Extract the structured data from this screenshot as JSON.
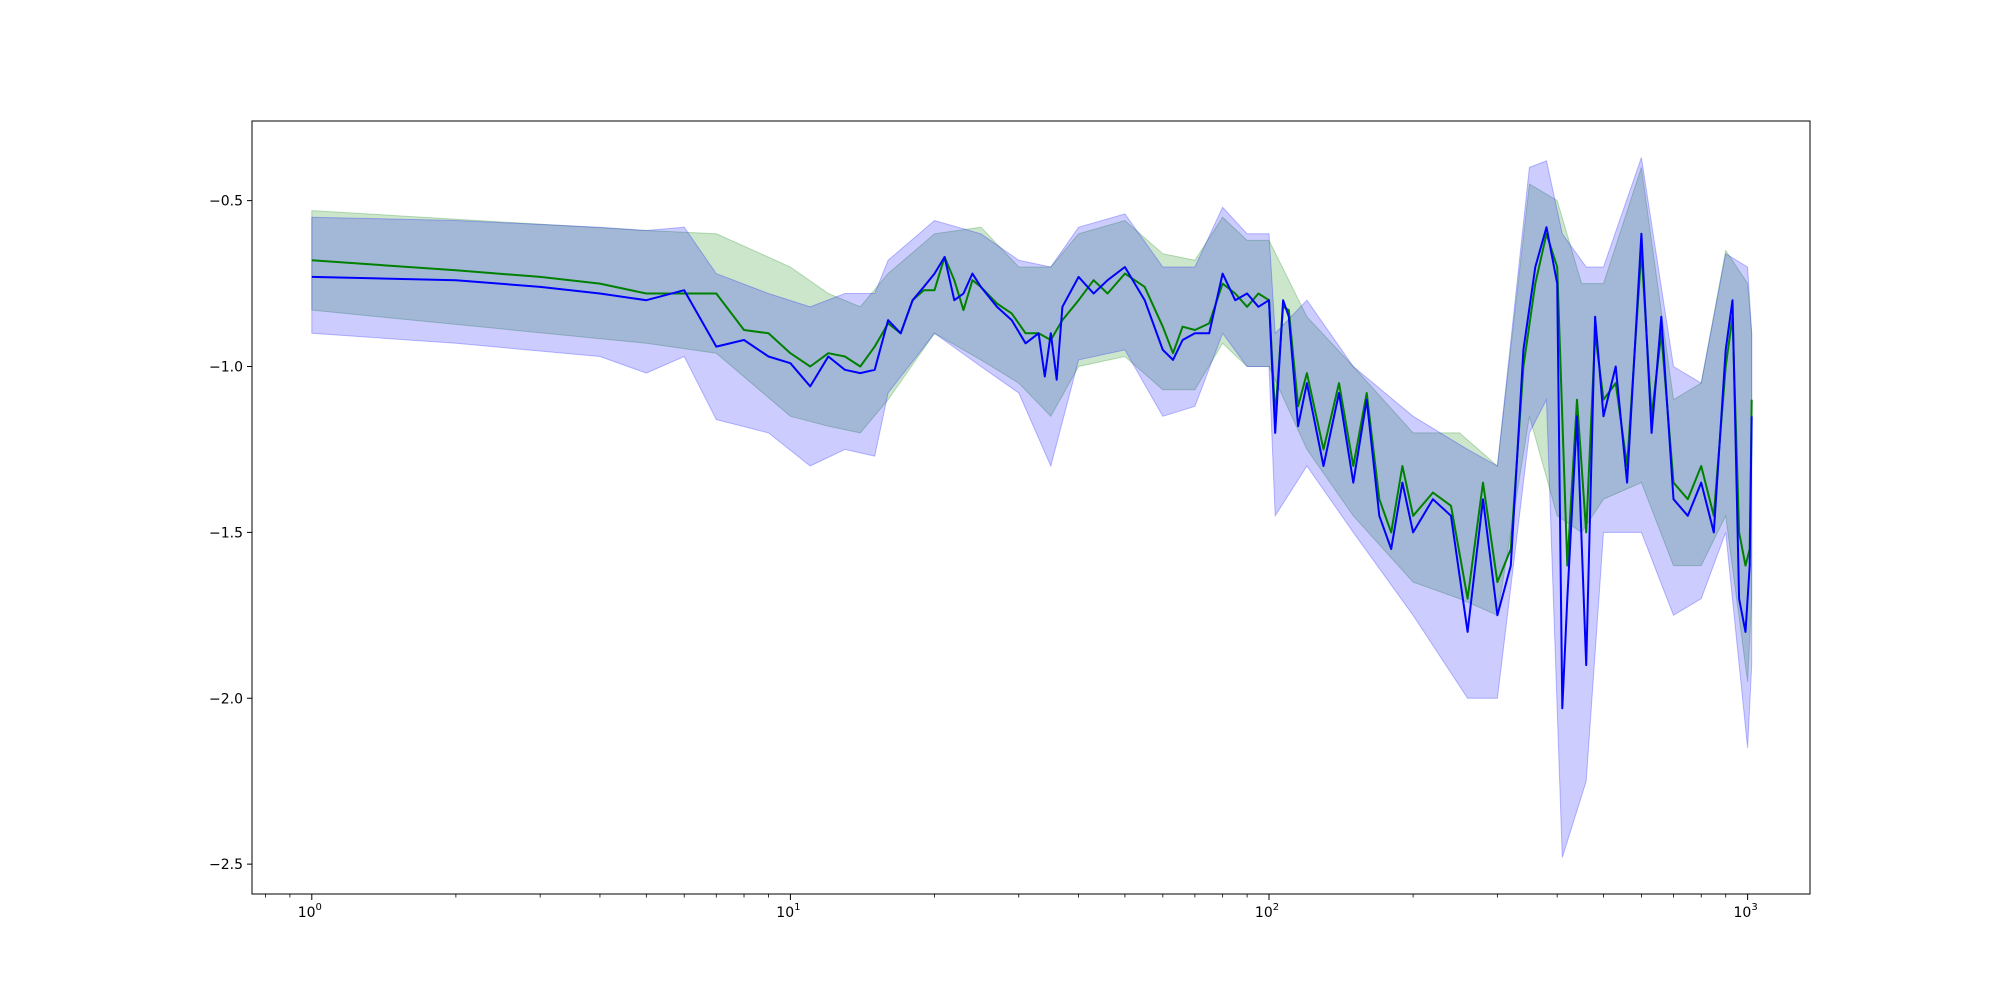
{
  "chart_data": {
    "type": "line",
    "title": "",
    "xlabel": "",
    "ylabel": "",
    "xscale": "log",
    "xlim": [
      0.75,
      1350
    ],
    "ylim": [
      -2.59,
      -0.26
    ],
    "grid": false,
    "legend": "none",
    "x_ticks": [
      {
        "base": "10",
        "exp": "0",
        "value": 1
      },
      {
        "base": "10",
        "exp": "1",
        "value": 10
      },
      {
        "base": "10",
        "exp": "2",
        "value": 100
      },
      {
        "base": "10",
        "exp": "3",
        "value": 1000
      }
    ],
    "y_ticks": [
      {
        "label": "−0.5",
        "value": -0.5
      },
      {
        "label": "−1.0",
        "value": -1.0
      },
      {
        "label": "−1.5",
        "value": -1.5
      },
      {
        "label": "−2.0",
        "value": -2.0
      },
      {
        "label": "−2.5",
        "value": -2.5
      }
    ],
    "series": [
      {
        "color": "#008000",
        "band_color": "#008000",
        "band_opacity": 0.2,
        "points": [
          [
            1,
            -0.68
          ],
          [
            2,
            -0.71
          ],
          [
            3,
            -0.73
          ],
          [
            4,
            -0.75
          ],
          [
            5,
            -0.78
          ],
          [
            6,
            -0.78
          ],
          [
            7,
            -0.78
          ],
          [
            8,
            -0.89
          ],
          [
            9,
            -0.9
          ],
          [
            10,
            -0.96
          ],
          [
            11,
            -1.0
          ],
          [
            12,
            -0.96
          ],
          [
            13,
            -0.97
          ],
          [
            14,
            -1.0
          ],
          [
            15,
            -0.94
          ],
          [
            16,
            -0.87
          ],
          [
            17,
            -0.9
          ],
          [
            18,
            -0.8
          ],
          [
            19,
            -0.77
          ],
          [
            20,
            -0.77
          ],
          [
            21,
            -0.67
          ],
          [
            22,
            -0.74
          ],
          [
            23,
            -0.83
          ],
          [
            24,
            -0.74
          ],
          [
            25,
            -0.76
          ],
          [
            27,
            -0.81
          ],
          [
            29,
            -0.84
          ],
          [
            31,
            -0.9
          ],
          [
            33,
            -0.9
          ],
          [
            35,
            -0.92
          ],
          [
            37,
            -0.86
          ],
          [
            40,
            -0.8
          ],
          [
            43,
            -0.74
          ],
          [
            46,
            -0.78
          ],
          [
            50,
            -0.72
          ],
          [
            55,
            -0.76
          ],
          [
            60,
            -0.88
          ],
          [
            63,
            -0.96
          ],
          [
            66,
            -0.88
          ],
          [
            70,
            -0.89
          ],
          [
            75,
            -0.87
          ],
          [
            80,
            -0.75
          ],
          [
            85,
            -0.78
          ],
          [
            90,
            -0.82
          ],
          [
            95,
            -0.78
          ],
          [
            100,
            -0.8
          ],
          [
            103,
            -1.15
          ],
          [
            107,
            -0.82
          ],
          [
            110,
            -0.83
          ],
          [
            115,
            -1.12
          ],
          [
            120,
            -1.02
          ],
          [
            130,
            -1.25
          ],
          [
            140,
            -1.05
          ],
          [
            150,
            -1.3
          ],
          [
            160,
            -1.08
          ],
          [
            170,
            -1.4
          ],
          [
            180,
            -1.5
          ],
          [
            190,
            -1.3
          ],
          [
            200,
            -1.45
          ],
          [
            220,
            -1.38
          ],
          [
            240,
            -1.42
          ],
          [
            260,
            -1.7
          ],
          [
            280,
            -1.35
          ],
          [
            300,
            -1.65
          ],
          [
            320,
            -1.55
          ],
          [
            340,
            -1.0
          ],
          [
            360,
            -0.75
          ],
          [
            380,
            -0.6
          ],
          [
            400,
            -0.7
          ],
          [
            420,
            -1.6
          ],
          [
            440,
            -1.1
          ],
          [
            460,
            -1.5
          ],
          [
            480,
            -0.9
          ],
          [
            500,
            -1.1
          ],
          [
            530,
            -1.05
          ],
          [
            560,
            -1.3
          ],
          [
            600,
            -0.65
          ],
          [
            630,
            -1.15
          ],
          [
            660,
            -0.9
          ],
          [
            700,
            -1.35
          ],
          [
            750,
            -1.4
          ],
          [
            800,
            -1.3
          ],
          [
            850,
            -1.45
          ],
          [
            900,
            -1.0
          ],
          [
            930,
            -0.85
          ],
          [
            960,
            -1.5
          ],
          [
            990,
            -1.6
          ],
          [
            1010,
            -1.55
          ],
          [
            1020,
            -1.1
          ]
        ],
        "band": [
          [
            1,
            -0.53,
            -0.83
          ],
          [
            5,
            -0.59,
            -0.93
          ],
          [
            7,
            -0.6,
            -0.96
          ],
          [
            10,
            -0.7,
            -1.15
          ],
          [
            12,
            -0.78,
            -1.18
          ],
          [
            14,
            -0.82,
            -1.2
          ],
          [
            16,
            -0.72,
            -1.1
          ],
          [
            20,
            -0.6,
            -0.9
          ],
          [
            25,
            -0.58,
            -0.98
          ],
          [
            30,
            -0.7,
            -1.05
          ],
          [
            35,
            -0.7,
            -1.15
          ],
          [
            40,
            -0.6,
            -1.0
          ],
          [
            50,
            -0.56,
            -0.97
          ],
          [
            60,
            -0.66,
            -1.07
          ],
          [
            70,
            -0.68,
            -1.07
          ],
          [
            80,
            -0.55,
            -0.93
          ],
          [
            90,
            -0.62,
            -1.0
          ],
          [
            100,
            -0.62,
            -1.0
          ],
          [
            120,
            -0.85,
            -1.25
          ],
          [
            150,
            -1.0,
            -1.45
          ],
          [
            200,
            -1.2,
            -1.65
          ],
          [
            250,
            -1.2,
            -1.7
          ],
          [
            300,
            -1.3,
            -1.75
          ],
          [
            350,
            -0.45,
            -1.15
          ],
          [
            400,
            -0.5,
            -1.45
          ],
          [
            450,
            -0.75,
            -1.5
          ],
          [
            500,
            -0.75,
            -1.4
          ],
          [
            600,
            -0.4,
            -1.35
          ],
          [
            700,
            -1.1,
            -1.6
          ],
          [
            800,
            -1.05,
            -1.6
          ],
          [
            900,
            -0.65,
            -1.45
          ],
          [
            1000,
            -0.75,
            -1.95
          ],
          [
            1020,
            -0.9,
            -1.7
          ]
        ]
      },
      {
        "color": "#0000ff",
        "band_color": "#0000ff",
        "band_opacity": 0.2,
        "points": [
          [
            1,
            -0.73
          ],
          [
            2,
            -0.74
          ],
          [
            3,
            -0.76
          ],
          [
            4,
            -0.78
          ],
          [
            5,
            -0.8
          ],
          [
            6,
            -0.77
          ],
          [
            7,
            -0.94
          ],
          [
            8,
            -0.92
          ],
          [
            9,
            -0.97
          ],
          [
            10,
            -0.99
          ],
          [
            11,
            -1.06
          ],
          [
            12,
            -0.97
          ],
          [
            13,
            -1.01
          ],
          [
            14,
            -1.02
          ],
          [
            15,
            -1.01
          ],
          [
            16,
            -0.86
          ],
          [
            17,
            -0.9
          ],
          [
            18,
            -0.8
          ],
          [
            19,
            -0.76
          ],
          [
            20,
            -0.72
          ],
          [
            21,
            -0.67
          ],
          [
            22,
            -0.8
          ],
          [
            23,
            -0.78
          ],
          [
            24,
            -0.72
          ],
          [
            25,
            -0.76
          ],
          [
            27,
            -0.82
          ],
          [
            29,
            -0.86
          ],
          [
            31,
            -0.93
          ],
          [
            33,
            -0.9
          ],
          [
            34,
            -1.03
          ],
          [
            35,
            -0.9
          ],
          [
            36,
            -1.04
          ],
          [
            37,
            -0.82
          ],
          [
            40,
            -0.73
          ],
          [
            43,
            -0.78
          ],
          [
            46,
            -0.74
          ],
          [
            50,
            -0.7
          ],
          [
            55,
            -0.8
          ],
          [
            60,
            -0.95
          ],
          [
            63,
            -0.98
          ],
          [
            66,
            -0.92
          ],
          [
            70,
            -0.9
          ],
          [
            75,
            -0.9
          ],
          [
            80,
            -0.72
          ],
          [
            85,
            -0.8
          ],
          [
            90,
            -0.78
          ],
          [
            95,
            -0.82
          ],
          [
            100,
            -0.8
          ],
          [
            103,
            -1.2
          ],
          [
            107,
            -0.8
          ],
          [
            110,
            -0.85
          ],
          [
            115,
            -1.18
          ],
          [
            120,
            -1.05
          ],
          [
            130,
            -1.3
          ],
          [
            140,
            -1.08
          ],
          [
            150,
            -1.35
          ],
          [
            160,
            -1.1
          ],
          [
            170,
            -1.45
          ],
          [
            180,
            -1.55
          ],
          [
            190,
            -1.35
          ],
          [
            200,
            -1.5
          ],
          [
            220,
            -1.4
          ],
          [
            240,
            -1.45
          ],
          [
            260,
            -1.8
          ],
          [
            280,
            -1.4
          ],
          [
            300,
            -1.75
          ],
          [
            320,
            -1.6
          ],
          [
            340,
            -0.95
          ],
          [
            360,
            -0.7
          ],
          [
            380,
            -0.58
          ],
          [
            400,
            -0.75
          ],
          [
            410,
            -2.03
          ],
          [
            420,
            -1.7
          ],
          [
            440,
            -1.15
          ],
          [
            460,
            -1.9
          ],
          [
            480,
            -0.85
          ],
          [
            500,
            -1.15
          ],
          [
            530,
            -1.0
          ],
          [
            560,
            -1.35
          ],
          [
            600,
            -0.6
          ],
          [
            630,
            -1.2
          ],
          [
            660,
            -0.85
          ],
          [
            700,
            -1.4
          ],
          [
            750,
            -1.45
          ],
          [
            800,
            -1.35
          ],
          [
            850,
            -1.5
          ],
          [
            900,
            -0.95
          ],
          [
            930,
            -0.8
          ],
          [
            960,
            -1.7
          ],
          [
            990,
            -1.8
          ],
          [
            1010,
            -1.6
          ],
          [
            1020,
            -1.15
          ]
        ],
        "band": [
          [
            1,
            -0.55,
            -0.9
          ],
          [
            2,
            -0.56,
            -0.93
          ],
          [
            4,
            -0.58,
            -0.97
          ],
          [
            5,
            -0.59,
            -1.02
          ],
          [
            6,
            -0.58,
            -0.97
          ],
          [
            7,
            -0.72,
            -1.16
          ],
          [
            9,
            -0.78,
            -1.2
          ],
          [
            11,
            -0.82,
            -1.3
          ],
          [
            13,
            -0.78,
            -1.25
          ],
          [
            15,
            -0.78,
            -1.27
          ],
          [
            16,
            -0.68,
            -1.08
          ],
          [
            20,
            -0.56,
            -0.9
          ],
          [
            25,
            -0.6,
            -1.0
          ],
          [
            30,
            -0.68,
            -1.08
          ],
          [
            35,
            -0.7,
            -1.3
          ],
          [
            40,
            -0.58,
            -0.98
          ],
          [
            50,
            -0.54,
            -0.95
          ],
          [
            60,
            -0.7,
            -1.15
          ],
          [
            70,
            -0.7,
            -1.12
          ],
          [
            80,
            -0.52,
            -0.9
          ],
          [
            90,
            -0.6,
            -1.0
          ],
          [
            100,
            -0.6,
            -1.0
          ],
          [
            103,
            -0.9,
            -1.45
          ],
          [
            120,
            -0.8,
            -1.3
          ],
          [
            150,
            -1.0,
            -1.5
          ],
          [
            200,
            -1.15,
            -1.75
          ],
          [
            260,
            -1.25,
            -2.0
          ],
          [
            300,
            -1.3,
            -2.0
          ],
          [
            350,
            -0.4,
            -1.2
          ],
          [
            380,
            -0.38,
            -1.1
          ],
          [
            410,
            -0.6,
            -2.48
          ],
          [
            460,
            -0.7,
            -2.25
          ],
          [
            500,
            -0.7,
            -1.5
          ],
          [
            600,
            -0.37,
            -1.5
          ],
          [
            700,
            -1.0,
            -1.75
          ],
          [
            800,
            -1.05,
            -1.7
          ],
          [
            900,
            -0.66,
            -1.5
          ],
          [
            1000,
            -0.7,
            -2.15
          ],
          [
            1020,
            -0.9,
            -1.9
          ]
        ]
      }
    ]
  }
}
